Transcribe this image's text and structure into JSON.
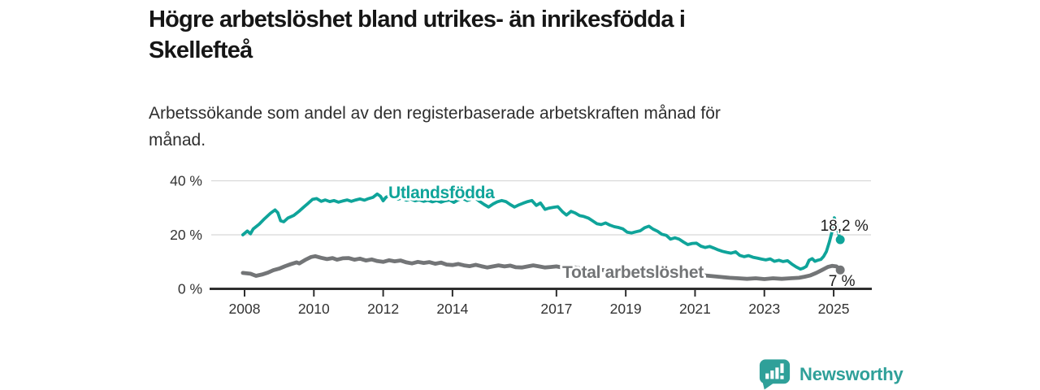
{
  "header": {
    "title_lines": [
      "Högre arbetslöshet bland utrikes- än inrikesfödda i",
      "Skellefteå"
    ],
    "subtitle_lines": [
      "Arbetssökande som andel av den registerbaserade arbetskraften månad för",
      "månad."
    ]
  },
  "chart_data": {
    "type": "line",
    "title": "Högre arbetslöshet bland utrikes- än inrikesfödda i Skellefteå",
    "subtitle": "Arbetssökande som andel av den registerbaserade arbetskraften månad för månad.",
    "xlabel": "",
    "ylabel": "",
    "ylim": [
      0,
      43
    ],
    "xlim": [
      2007.0,
      2026.1
    ],
    "grid": "horizontal",
    "legend_position": "inline-labels",
    "y_ticks": [
      {
        "value": 0,
        "label": "0 %"
      },
      {
        "value": 20,
        "label": "20 %"
      },
      {
        "value": 40,
        "label": "40 %"
      }
    ],
    "x_ticks": [
      {
        "value": 2008,
        "label": "2008"
      },
      {
        "value": 2010,
        "label": "2010"
      },
      {
        "value": 2012,
        "label": "2012"
      },
      {
        "value": 2014,
        "label": "2014"
      },
      {
        "value": 2017,
        "label": "2017"
      },
      {
        "value": 2019,
        "label": "2019"
      },
      {
        "value": 2021,
        "label": "2021"
      },
      {
        "value": 2023,
        "label": "2023"
      },
      {
        "value": 2025,
        "label": "2025"
      }
    ],
    "series": [
      {
        "name": "Utlandsfödda",
        "color": "#0FA49A",
        "end_label": "18,2 %",
        "end_value": 18.2,
        "points": [
          [
            2007.95,
            20.0
          ],
          [
            2008.08,
            21.4
          ],
          [
            2008.17,
            20.4
          ],
          [
            2008.25,
            22.2
          ],
          [
            2008.42,
            23.9
          ],
          [
            2008.58,
            26.0
          ],
          [
            2008.75,
            28.0
          ],
          [
            2008.88,
            29.2
          ],
          [
            2008.96,
            28.2
          ],
          [
            2009.04,
            25.2
          ],
          [
            2009.13,
            24.8
          ],
          [
            2009.25,
            26.2
          ],
          [
            2009.42,
            27.2
          ],
          [
            2009.58,
            28.8
          ],
          [
            2009.71,
            30.3
          ],
          [
            2009.83,
            31.6
          ],
          [
            2009.96,
            33.1
          ],
          [
            2010.08,
            33.4
          ],
          [
            2010.21,
            32.4
          ],
          [
            2010.33,
            32.9
          ],
          [
            2010.46,
            32.3
          ],
          [
            2010.58,
            32.7
          ],
          [
            2010.71,
            32.1
          ],
          [
            2010.83,
            32.5
          ],
          [
            2010.96,
            32.9
          ],
          [
            2011.08,
            32.4
          ],
          [
            2011.21,
            32.9
          ],
          [
            2011.33,
            33.3
          ],
          [
            2011.46,
            32.8
          ],
          [
            2011.58,
            33.4
          ],
          [
            2011.71,
            33.9
          ],
          [
            2011.83,
            35.1
          ],
          [
            2011.92,
            34.3
          ],
          [
            2012.0,
            32.6
          ],
          [
            2012.08,
            33.9
          ],
          [
            2012.17,
            34.5
          ],
          [
            2012.29,
            33.8
          ],
          [
            2012.42,
            33.2
          ],
          [
            2012.54,
            33.6
          ],
          [
            2012.67,
            32.8
          ],
          [
            2012.79,
            33.3
          ],
          [
            2012.92,
            32.6
          ],
          [
            2013.04,
            33.0
          ],
          [
            2013.17,
            32.4
          ],
          [
            2013.29,
            32.8
          ],
          [
            2013.42,
            32.2
          ],
          [
            2013.54,
            32.7
          ],
          [
            2013.67,
            32.1
          ],
          [
            2013.79,
            32.6
          ],
          [
            2013.92,
            32.9
          ],
          [
            2014.04,
            32.0
          ],
          [
            2014.17,
            33.0
          ],
          [
            2014.29,
            33.5
          ],
          [
            2014.42,
            32.7
          ],
          [
            2014.54,
            33.2
          ],
          [
            2014.67,
            33.5
          ],
          [
            2014.79,
            32.3
          ],
          [
            2014.92,
            31.2
          ],
          [
            2015.04,
            30.3
          ],
          [
            2015.17,
            31.4
          ],
          [
            2015.29,
            32.2
          ],
          [
            2015.42,
            32.7
          ],
          [
            2015.54,
            32.3
          ],
          [
            2015.67,
            31.2
          ],
          [
            2015.79,
            30.3
          ],
          [
            2015.92,
            31.1
          ],
          [
            2016.04,
            31.7
          ],
          [
            2016.17,
            32.3
          ],
          [
            2016.29,
            32.7
          ],
          [
            2016.42,
            30.9
          ],
          [
            2016.54,
            31.8
          ],
          [
            2016.67,
            29.4
          ],
          [
            2016.79,
            29.9
          ],
          [
            2016.92,
            30.2
          ],
          [
            2017.04,
            30.4
          ],
          [
            2017.17,
            28.6
          ],
          [
            2017.29,
            27.3
          ],
          [
            2017.42,
            28.7
          ],
          [
            2017.54,
            28.1
          ],
          [
            2017.67,
            27.1
          ],
          [
            2017.79,
            26.8
          ],
          [
            2017.92,
            26.2
          ],
          [
            2018.04,
            25.2
          ],
          [
            2018.17,
            24.1
          ],
          [
            2018.29,
            23.8
          ],
          [
            2018.42,
            24.4
          ],
          [
            2018.54,
            23.6
          ],
          [
            2018.67,
            23.0
          ],
          [
            2018.79,
            22.7
          ],
          [
            2018.92,
            22.2
          ],
          [
            2019.04,
            21.0
          ],
          [
            2019.17,
            20.7
          ],
          [
            2019.29,
            21.1
          ],
          [
            2019.42,
            21.5
          ],
          [
            2019.54,
            22.6
          ],
          [
            2019.67,
            23.2
          ],
          [
            2019.79,
            22.1
          ],
          [
            2019.92,
            21.3
          ],
          [
            2020.04,
            20.2
          ],
          [
            2020.17,
            19.8
          ],
          [
            2020.29,
            18.4
          ],
          [
            2020.42,
            18.9
          ],
          [
            2020.54,
            18.4
          ],
          [
            2020.67,
            17.3
          ],
          [
            2020.79,
            16.4
          ],
          [
            2020.92,
            16.8
          ],
          [
            2021.04,
            16.9
          ],
          [
            2021.17,
            15.8
          ],
          [
            2021.29,
            15.3
          ],
          [
            2021.42,
            15.7
          ],
          [
            2021.54,
            15.1
          ],
          [
            2021.67,
            14.4
          ],
          [
            2021.79,
            13.9
          ],
          [
            2021.92,
            13.5
          ],
          [
            2022.04,
            13.2
          ],
          [
            2022.17,
            13.7
          ],
          [
            2022.29,
            12.4
          ],
          [
            2022.42,
            11.9
          ],
          [
            2022.54,
            12.3
          ],
          [
            2022.67,
            11.7
          ],
          [
            2022.79,
            11.4
          ],
          [
            2022.92,
            11.0
          ],
          [
            2023.04,
            10.7
          ],
          [
            2023.17,
            11.1
          ],
          [
            2023.29,
            10.2
          ],
          [
            2023.42,
            10.6
          ],
          [
            2023.54,
            10.1
          ],
          [
            2023.67,
            10.4
          ],
          [
            2023.79,
            9.2
          ],
          [
            2023.92,
            8.1
          ],
          [
            2024.04,
            7.3
          ],
          [
            2024.13,
            7.7
          ],
          [
            2024.21,
            8.3
          ],
          [
            2024.29,
            10.6
          ],
          [
            2024.38,
            11.2
          ],
          [
            2024.46,
            10.2
          ],
          [
            2024.54,
            10.6
          ],
          [
            2024.63,
            10.9
          ],
          [
            2024.71,
            12.0
          ],
          [
            2024.79,
            13.8
          ],
          [
            2024.88,
            17.5
          ],
          [
            2024.96,
            21.5
          ],
          [
            2025.02,
            26.3
          ],
          [
            2025.19,
            18.2
          ]
        ]
      },
      {
        "name": "Total arbetslöshet",
        "color": "#737577",
        "end_label": "7 %",
        "end_value": 7,
        "points": [
          [
            2007.95,
            5.9
          ],
          [
            2008.17,
            5.6
          ],
          [
            2008.33,
            4.8
          ],
          [
            2008.5,
            5.3
          ],
          [
            2008.67,
            6.0
          ],
          [
            2008.83,
            6.9
          ],
          [
            2009.0,
            7.5
          ],
          [
            2009.17,
            8.4
          ],
          [
            2009.33,
            9.1
          ],
          [
            2009.5,
            9.8
          ],
          [
            2009.58,
            9.4
          ],
          [
            2009.75,
            10.7
          ],
          [
            2009.92,
            11.8
          ],
          [
            2010.04,
            12.1
          ],
          [
            2010.21,
            11.5
          ],
          [
            2010.38,
            11.0
          ],
          [
            2010.54,
            11.4
          ],
          [
            2010.67,
            10.8
          ],
          [
            2010.83,
            11.3
          ],
          [
            2011.0,
            11.4
          ],
          [
            2011.17,
            10.8
          ],
          [
            2011.33,
            11.2
          ],
          [
            2011.5,
            10.5
          ],
          [
            2011.67,
            10.9
          ],
          [
            2011.83,
            10.3
          ],
          [
            2012.0,
            10.0
          ],
          [
            2012.17,
            10.6
          ],
          [
            2012.33,
            10.2
          ],
          [
            2012.5,
            10.5
          ],
          [
            2012.67,
            9.8
          ],
          [
            2012.83,
            9.4
          ],
          [
            2013.0,
            10.0
          ],
          [
            2013.17,
            9.6
          ],
          [
            2013.33,
            9.9
          ],
          [
            2013.5,
            9.3
          ],
          [
            2013.67,
            9.7
          ],
          [
            2013.83,
            9.0
          ],
          [
            2014.0,
            8.8
          ],
          [
            2014.17,
            9.2
          ],
          [
            2014.33,
            8.7
          ],
          [
            2014.5,
            8.4
          ],
          [
            2014.67,
            8.9
          ],
          [
            2014.83,
            8.4
          ],
          [
            2015.0,
            7.9
          ],
          [
            2015.17,
            8.3
          ],
          [
            2015.33,
            8.7
          ],
          [
            2015.5,
            8.3
          ],
          [
            2015.67,
            8.6
          ],
          [
            2015.83,
            8.0
          ],
          [
            2016.0,
            7.9
          ],
          [
            2016.17,
            8.3
          ],
          [
            2016.33,
            8.7
          ],
          [
            2016.5,
            8.3
          ],
          [
            2016.67,
            7.9
          ],
          [
            2016.83,
            8.1
          ],
          [
            2017.0,
            8.3
          ],
          [
            2017.17,
            7.9
          ],
          [
            2017.33,
            7.8
          ],
          [
            2017.5,
            8.0
          ],
          [
            2017.67,
            7.6
          ],
          [
            2017.83,
            7.4
          ],
          [
            2018.0,
            7.3
          ],
          [
            2018.25,
            7.0
          ],
          [
            2018.5,
            6.9
          ],
          [
            2018.75,
            6.7
          ],
          [
            2019.0,
            6.5
          ],
          [
            2019.25,
            6.3
          ],
          [
            2019.5,
            6.2
          ],
          [
            2019.75,
            6.3
          ],
          [
            2020.0,
            6.6
          ],
          [
            2020.25,
            6.8
          ],
          [
            2020.5,
            6.5
          ],
          [
            2020.75,
            6.0
          ],
          [
            2021.0,
            5.5
          ],
          [
            2021.25,
            5.0
          ],
          [
            2021.5,
            4.7
          ],
          [
            2021.75,
            4.4
          ],
          [
            2022.0,
            4.1
          ],
          [
            2022.25,
            3.9
          ],
          [
            2022.5,
            3.7
          ],
          [
            2022.75,
            3.9
          ],
          [
            2023.0,
            3.6
          ],
          [
            2023.25,
            3.9
          ],
          [
            2023.5,
            3.7
          ],
          [
            2023.75,
            3.9
          ],
          [
            2024.0,
            4.1
          ],
          [
            2024.17,
            4.5
          ],
          [
            2024.33,
            5.0
          ],
          [
            2024.5,
            5.9
          ],
          [
            2024.67,
            7.0
          ],
          [
            2024.83,
            8.1
          ],
          [
            2024.96,
            8.5
          ],
          [
            2025.08,
            8.3
          ],
          [
            2025.19,
            7.0
          ]
        ]
      }
    ],
    "colors": {
      "grid": "#d8d8d8",
      "axis": "#2e2e2e",
      "tick_text": "#333333",
      "annotation_text": "#1c1c1c"
    }
  },
  "footer": {
    "brand": "Newsworthy",
    "brand_color": "#2FA099"
  }
}
